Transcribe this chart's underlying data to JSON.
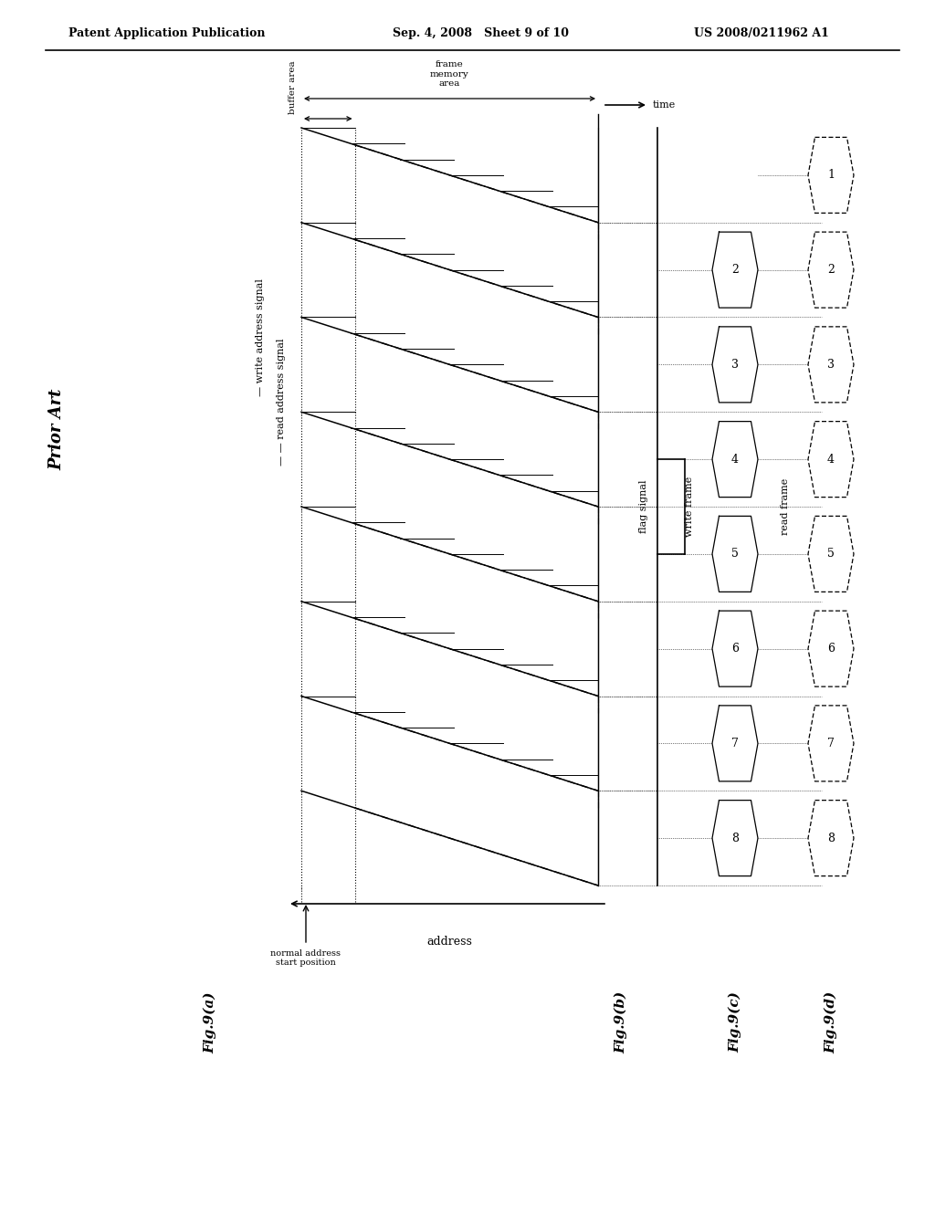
{
  "title_left": "Patent Application Publication",
  "title_mid": "Sep. 4, 2008   Sheet 9 of 10",
  "title_right": "US 2008/0211962 A1",
  "prior_art_label": "Prior Art",
  "fig_a_label": "Fig.9(a)",
  "fig_b_label": "Fig.9(b)",
  "fig_c_label": "Fig.9(c)",
  "fig_d_label": "Fig.9(d)",
  "write_signal_label": "— write address signal",
  "read_signal_label": "— — read address signal",
  "address_label": "address",
  "normal_addr_label": "normal address\nstart position",
  "flag_signal_label": "flag signal",
  "write_frame_label": "write frame",
  "read_frame_label": "read frame",
  "buffer_area_label": "buffer area",
  "frame_memory_label": "frame\nmemory\narea",
  "time_label": "time",
  "bg_color": "#ffffff",
  "n_cycles": 8,
  "frame_numbers_write": [
    2,
    3,
    4,
    5,
    6,
    7,
    8
  ],
  "frame_numbers_read": [
    1,
    2,
    3,
    4,
    5,
    6,
    7,
    8
  ]
}
